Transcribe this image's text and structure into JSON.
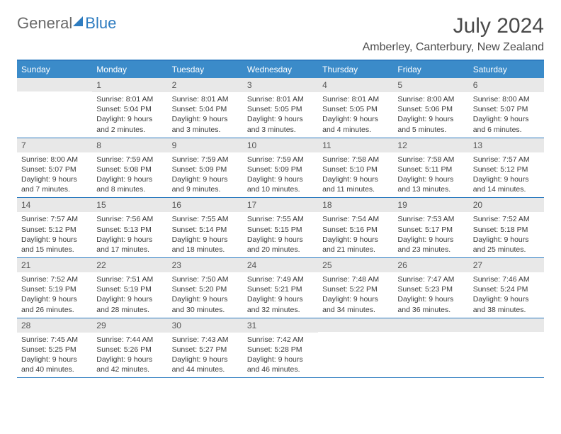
{
  "logo": {
    "part1": "General",
    "part2": "Blue"
  },
  "title": "July 2024",
  "location": "Amberley, Canterbury, New Zealand",
  "colors": {
    "brand_blue": "#2e7cc0",
    "header_blue": "#3b8bc9",
    "daynum_bg": "#e8e8e8",
    "text": "#3a3a3a",
    "white": "#ffffff"
  },
  "weekdays": [
    "Sunday",
    "Monday",
    "Tuesday",
    "Wednesday",
    "Thursday",
    "Friday",
    "Saturday"
  ],
  "weeks": [
    [
      {
        "day": "",
        "sunrise": "",
        "sunset": "",
        "daylight": ""
      },
      {
        "day": "1",
        "sunrise": "Sunrise: 8:01 AM",
        "sunset": "Sunset: 5:04 PM",
        "daylight": "Daylight: 9 hours and 2 minutes."
      },
      {
        "day": "2",
        "sunrise": "Sunrise: 8:01 AM",
        "sunset": "Sunset: 5:04 PM",
        "daylight": "Daylight: 9 hours and 3 minutes."
      },
      {
        "day": "3",
        "sunrise": "Sunrise: 8:01 AM",
        "sunset": "Sunset: 5:05 PM",
        "daylight": "Daylight: 9 hours and 3 minutes."
      },
      {
        "day": "4",
        "sunrise": "Sunrise: 8:01 AM",
        "sunset": "Sunset: 5:05 PM",
        "daylight": "Daylight: 9 hours and 4 minutes."
      },
      {
        "day": "5",
        "sunrise": "Sunrise: 8:00 AM",
        "sunset": "Sunset: 5:06 PM",
        "daylight": "Daylight: 9 hours and 5 minutes."
      },
      {
        "day": "6",
        "sunrise": "Sunrise: 8:00 AM",
        "sunset": "Sunset: 5:07 PM",
        "daylight": "Daylight: 9 hours and 6 minutes."
      }
    ],
    [
      {
        "day": "7",
        "sunrise": "Sunrise: 8:00 AM",
        "sunset": "Sunset: 5:07 PM",
        "daylight": "Daylight: 9 hours and 7 minutes."
      },
      {
        "day": "8",
        "sunrise": "Sunrise: 7:59 AM",
        "sunset": "Sunset: 5:08 PM",
        "daylight": "Daylight: 9 hours and 8 minutes."
      },
      {
        "day": "9",
        "sunrise": "Sunrise: 7:59 AM",
        "sunset": "Sunset: 5:09 PM",
        "daylight": "Daylight: 9 hours and 9 minutes."
      },
      {
        "day": "10",
        "sunrise": "Sunrise: 7:59 AM",
        "sunset": "Sunset: 5:09 PM",
        "daylight": "Daylight: 9 hours and 10 minutes."
      },
      {
        "day": "11",
        "sunrise": "Sunrise: 7:58 AM",
        "sunset": "Sunset: 5:10 PM",
        "daylight": "Daylight: 9 hours and 11 minutes."
      },
      {
        "day": "12",
        "sunrise": "Sunrise: 7:58 AM",
        "sunset": "Sunset: 5:11 PM",
        "daylight": "Daylight: 9 hours and 13 minutes."
      },
      {
        "day": "13",
        "sunrise": "Sunrise: 7:57 AM",
        "sunset": "Sunset: 5:12 PM",
        "daylight": "Daylight: 9 hours and 14 minutes."
      }
    ],
    [
      {
        "day": "14",
        "sunrise": "Sunrise: 7:57 AM",
        "sunset": "Sunset: 5:12 PM",
        "daylight": "Daylight: 9 hours and 15 minutes."
      },
      {
        "day": "15",
        "sunrise": "Sunrise: 7:56 AM",
        "sunset": "Sunset: 5:13 PM",
        "daylight": "Daylight: 9 hours and 17 minutes."
      },
      {
        "day": "16",
        "sunrise": "Sunrise: 7:55 AM",
        "sunset": "Sunset: 5:14 PM",
        "daylight": "Daylight: 9 hours and 18 minutes."
      },
      {
        "day": "17",
        "sunrise": "Sunrise: 7:55 AM",
        "sunset": "Sunset: 5:15 PM",
        "daylight": "Daylight: 9 hours and 20 minutes."
      },
      {
        "day": "18",
        "sunrise": "Sunrise: 7:54 AM",
        "sunset": "Sunset: 5:16 PM",
        "daylight": "Daylight: 9 hours and 21 minutes."
      },
      {
        "day": "19",
        "sunrise": "Sunrise: 7:53 AM",
        "sunset": "Sunset: 5:17 PM",
        "daylight": "Daylight: 9 hours and 23 minutes."
      },
      {
        "day": "20",
        "sunrise": "Sunrise: 7:52 AM",
        "sunset": "Sunset: 5:18 PM",
        "daylight": "Daylight: 9 hours and 25 minutes."
      }
    ],
    [
      {
        "day": "21",
        "sunrise": "Sunrise: 7:52 AM",
        "sunset": "Sunset: 5:19 PM",
        "daylight": "Daylight: 9 hours and 26 minutes."
      },
      {
        "day": "22",
        "sunrise": "Sunrise: 7:51 AM",
        "sunset": "Sunset: 5:19 PM",
        "daylight": "Daylight: 9 hours and 28 minutes."
      },
      {
        "day": "23",
        "sunrise": "Sunrise: 7:50 AM",
        "sunset": "Sunset: 5:20 PM",
        "daylight": "Daylight: 9 hours and 30 minutes."
      },
      {
        "day": "24",
        "sunrise": "Sunrise: 7:49 AM",
        "sunset": "Sunset: 5:21 PM",
        "daylight": "Daylight: 9 hours and 32 minutes."
      },
      {
        "day": "25",
        "sunrise": "Sunrise: 7:48 AM",
        "sunset": "Sunset: 5:22 PM",
        "daylight": "Daylight: 9 hours and 34 minutes."
      },
      {
        "day": "26",
        "sunrise": "Sunrise: 7:47 AM",
        "sunset": "Sunset: 5:23 PM",
        "daylight": "Daylight: 9 hours and 36 minutes."
      },
      {
        "day": "27",
        "sunrise": "Sunrise: 7:46 AM",
        "sunset": "Sunset: 5:24 PM",
        "daylight": "Daylight: 9 hours and 38 minutes."
      }
    ],
    [
      {
        "day": "28",
        "sunrise": "Sunrise: 7:45 AM",
        "sunset": "Sunset: 5:25 PM",
        "daylight": "Daylight: 9 hours and 40 minutes."
      },
      {
        "day": "29",
        "sunrise": "Sunrise: 7:44 AM",
        "sunset": "Sunset: 5:26 PM",
        "daylight": "Daylight: 9 hours and 42 minutes."
      },
      {
        "day": "30",
        "sunrise": "Sunrise: 7:43 AM",
        "sunset": "Sunset: 5:27 PM",
        "daylight": "Daylight: 9 hours and 44 minutes."
      },
      {
        "day": "31",
        "sunrise": "Sunrise: 7:42 AM",
        "sunset": "Sunset: 5:28 PM",
        "daylight": "Daylight: 9 hours and 46 minutes."
      },
      {
        "day": "",
        "sunrise": "",
        "sunset": "",
        "daylight": ""
      },
      {
        "day": "",
        "sunrise": "",
        "sunset": "",
        "daylight": ""
      },
      {
        "day": "",
        "sunrise": "",
        "sunset": "",
        "daylight": ""
      }
    ]
  ]
}
